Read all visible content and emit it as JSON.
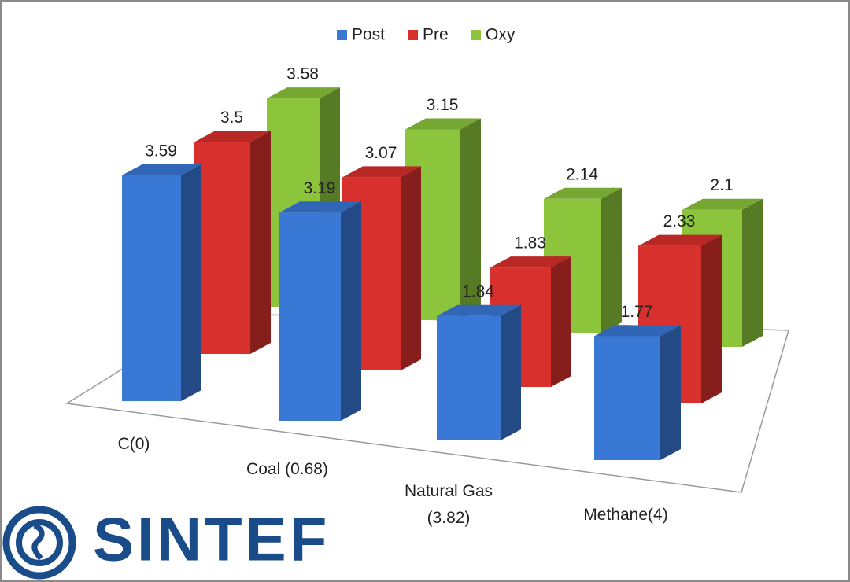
{
  "chart_data": {
    "type": "bar3d",
    "categories": [
      "C(0)",
      "Coal (0.68)",
      "Natural Gas (3.82)",
      "Methane(4)"
    ],
    "series": [
      {
        "name": "Post",
        "color": "#3a78d6",
        "values": [
          3.59,
          3.19,
          1.84,
          1.77
        ]
      },
      {
        "name": "Pre",
        "color": "#d8302c",
        "values": [
          3.5,
          3.07,
          1.83,
          2.33
        ]
      },
      {
        "name": "Oxy",
        "color": "#8cc43c",
        "values": [
          3.58,
          3.15,
          2.14,
          2.1
        ]
      }
    ],
    "legend": "top"
  },
  "logo": {
    "text": "SINTEF"
  }
}
